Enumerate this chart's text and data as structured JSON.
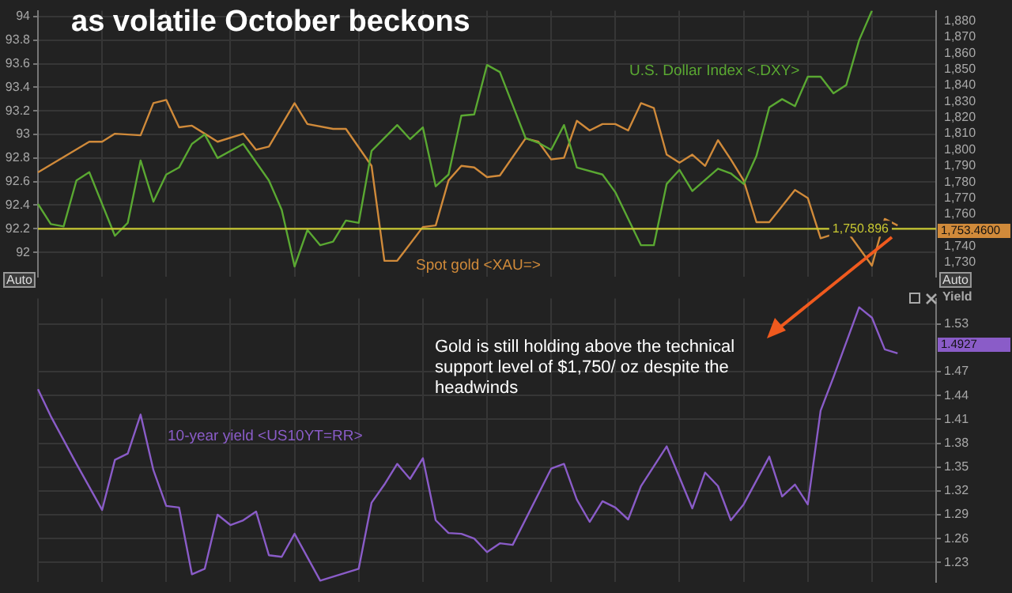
{
  "chart_data": [
    {
      "type": "line",
      "title": "as volatile October beckons",
      "categories": [
        null,
        null,
        null,
        null,
        null,
        null,
        null,
        null,
        null,
        null,
        null,
        null,
        null,
        null,
        null,
        null,
        null,
        null,
        null,
        null,
        null,
        null,
        null,
        null,
        null,
        null,
        null,
        null,
        null,
        null,
        null,
        null,
        null,
        null,
        null,
        null,
        null,
        null,
        null,
        null,
        null,
        null,
        null,
        null,
        null,
        null,
        null,
        null,
        null,
        null,
        null,
        null,
        null,
        null,
        null,
        null,
        null,
        null,
        null,
        null,
        null,
        null,
        null,
        null,
        null,
        null,
        null,
        null,
        null,
        null,
        null
      ],
      "series": [
        {
          "name": "U.S. Dollar Index <.DXY>",
          "color": "#5aa832",
          "axis": "y",
          "values": [
            92.41,
            92.24,
            92.22,
            92.61,
            92.68,
            null,
            92.14,
            92.25,
            92.78,
            92.43,
            92.66,
            92.72,
            92.92,
            93.0,
            92.8,
            null,
            92.92,
            null,
            92.61,
            92.36,
            91.88,
            92.19,
            92.06,
            92.09,
            92.27,
            92.25,
            92.86,
            null,
            93.08,
            92.96,
            93.06,
            92.56,
            92.66,
            93.16,
            93.17,
            93.59,
            93.53,
            null,
            92.97,
            92.93,
            92.87,
            93.08,
            92.72,
            null,
            92.66,
            92.51,
            null,
            92.06,
            92.06,
            92.58,
            92.7,
            92.52,
            null,
            92.71,
            92.67,
            92.58,
            92.82,
            93.23,
            93.3,
            93.24,
            93.49,
            93.49,
            93.35,
            93.42,
            93.8,
            94.05,
            null,
            null,
            null,
            null,
            null
          ]
        },
        {
          "name": "Spot gold <XAU=>",
          "color": "#d08a3a",
          "axis": "y2",
          "values": [
            1786,
            null,
            null,
            null,
            1805,
            1805,
            1810,
            null,
            1809,
            1829,
            1831,
            1814,
            1815,
            null,
            1805,
            null,
            1810,
            1800,
            1802,
            null,
            1829,
            1816,
            null,
            1813,
            1813,
            null,
            1790,
            1731,
            1731,
            null,
            1752,
            1753,
            1781,
            1790,
            1789,
            1783,
            1784,
            null,
            1807,
            1805,
            1794,
            1795,
            1818,
            1812,
            1816,
            1816,
            1812,
            1829,
            1826,
            1797,
            1792,
            1797,
            1790,
            1806,
            1794,
            1781,
            1755,
            1755,
            null,
            1775,
            1770,
            1745,
            null,
            1750,
            null,
            1728,
            1757,
            1753,
            null,
            null,
            null
          ]
        }
      ],
      "ylim": [
        91.79,
        94.05
      ],
      "yticks": [
        92,
        92.2,
        92.4,
        92.6,
        92.8,
        93,
        93.2,
        93.4,
        93.6,
        93.8,
        94
      ],
      "y2lim": [
        1720.9,
        1886.4
      ],
      "y2ticks": [
        {
          "value": 1730,
          "label": "1,730"
        },
        {
          "value": 1740,
          "label": "1,740"
        },
        {
          "value": 1750,
          "label": null
        },
        {
          "value": 1760,
          "label": "1,760"
        },
        {
          "value": 1770,
          "label": "1,770"
        },
        {
          "value": 1780,
          "label": "1,780"
        },
        {
          "value": 1790,
          "label": "1,790"
        },
        {
          "value": 1800,
          "label": "1,800"
        },
        {
          "value": 1810,
          "label": "1,810"
        },
        {
          "value": 1820,
          "label": "1,820"
        },
        {
          "value": 1830,
          "label": "1,830"
        },
        {
          "value": 1840,
          "label": "1,840"
        },
        {
          "value": 1850,
          "label": "1,850"
        },
        {
          "value": 1860,
          "label": "1,860"
        },
        {
          "value": 1870,
          "label": "1,870"
        },
        {
          "value": 1880,
          "label": "1,880"
        }
      ],
      "ref_lines": [
        {
          "axis": "y2",
          "value": 1750.896,
          "label": "1,750.896",
          "color": "#c8c832"
        }
      ],
      "annotations": [
        "Auto",
        "Auto",
        "1,753.4600"
      ],
      "grid": true,
      "legend": false,
      "tick_labels": "y",
      "marker": "none"
    },
    {
      "type": "line",
      "categories": [
        null,
        null,
        null,
        null,
        null,
        null,
        null,
        null,
        null,
        null,
        null,
        null,
        null,
        null,
        null,
        null,
        null,
        null,
        null,
        null,
        null,
        null,
        null,
        null,
        null,
        null,
        null,
        null,
        null,
        null,
        null,
        null,
        null,
        null,
        null,
        null,
        null,
        null,
        null,
        null,
        null,
        null,
        null,
        null,
        null,
        null,
        null,
        null,
        null,
        null,
        null,
        null,
        null,
        null,
        null,
        null,
        null,
        null,
        null,
        null,
        null,
        null,
        null,
        null,
        null,
        null,
        null,
        null,
        null,
        null,
        null
      ],
      "series": [
        {
          "name": "10-year yield <US10YT=RR>",
          "color": "#8a5cc8",
          "values": [
            1.448,
            1.414,
            null,
            1.354,
            null,
            1.296,
            1.359,
            1.367,
            1.416,
            1.346,
            1.301,
            1.299,
            1.215,
            1.222,
            1.29,
            1.277,
            1.283,
            1.294,
            1.239,
            1.237,
            1.266,
            null,
            1.207,
            null,
            null,
            1.222,
            1.305,
            1.328,
            1.354,
            1.335,
            1.361,
            1.283,
            1.267,
            1.266,
            1.26,
            1.243,
            1.254,
            1.252,
            null,
            null,
            1.348,
            1.354,
            1.309,
            1.281,
            1.307,
            1.299,
            1.284,
            1.326,
            null,
            1.376,
            null,
            1.298,
            1.343,
            1.326,
            1.283,
            1.303,
            null,
            1.363,
            1.313,
            1.328,
            1.303,
            1.421,
            1.463,
            null,
            1.551,
            1.538,
            1.498,
            1.493,
            null,
            null,
            null
          ]
        }
      ],
      "ylabel": "Yield",
      "ylim": [
        1.205,
        1.562
      ],
      "yticks": [
        1.23,
        1.26,
        1.29,
        1.32,
        1.35,
        1.38,
        1.41,
        1.44,
        1.47,
        1.53
      ],
      "annotations": [
        "Gold is still holding above the technical support level of $1,750/ oz despite the headwinds",
        "1.4927"
      ],
      "grid": true,
      "legend": false,
      "tick_labels": "y",
      "marker": "none"
    }
  ]
}
